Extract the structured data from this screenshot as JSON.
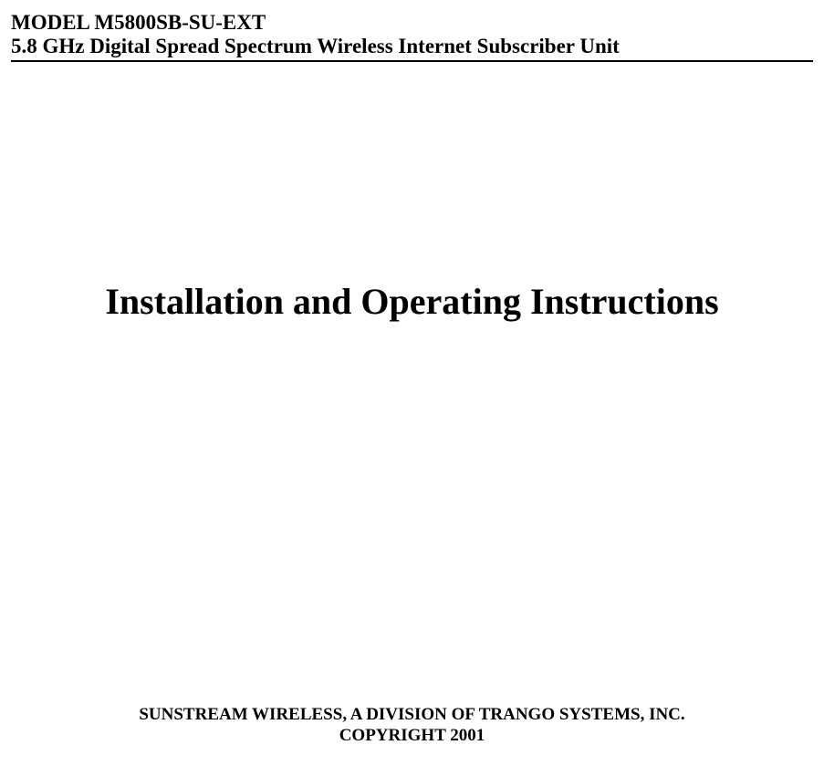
{
  "header": {
    "model": "MODEL M5800SB-SU-EXT",
    "subtitle": "5.8 GHz Digital Spread Spectrum Wireless Internet Subscriber Unit"
  },
  "main": {
    "title": "Installation and Operating Instructions"
  },
  "footer": {
    "company": "SUNSTREAM WIRELESS, A DIVISION OF TRANGO SYSTEMS, INC.",
    "copyright": "COPYRIGHT 2001"
  },
  "styling": {
    "background_color": "#ffffff",
    "text_color": "#000000",
    "font_family": "Times New Roman",
    "header_fontsize": 23,
    "header_fontweight": "bold",
    "main_title_fontsize": 40,
    "main_title_fontweight": "bold",
    "footer_fontsize": 19,
    "footer_fontweight": "bold",
    "divider_color": "#000000",
    "divider_thickness": 2
  }
}
